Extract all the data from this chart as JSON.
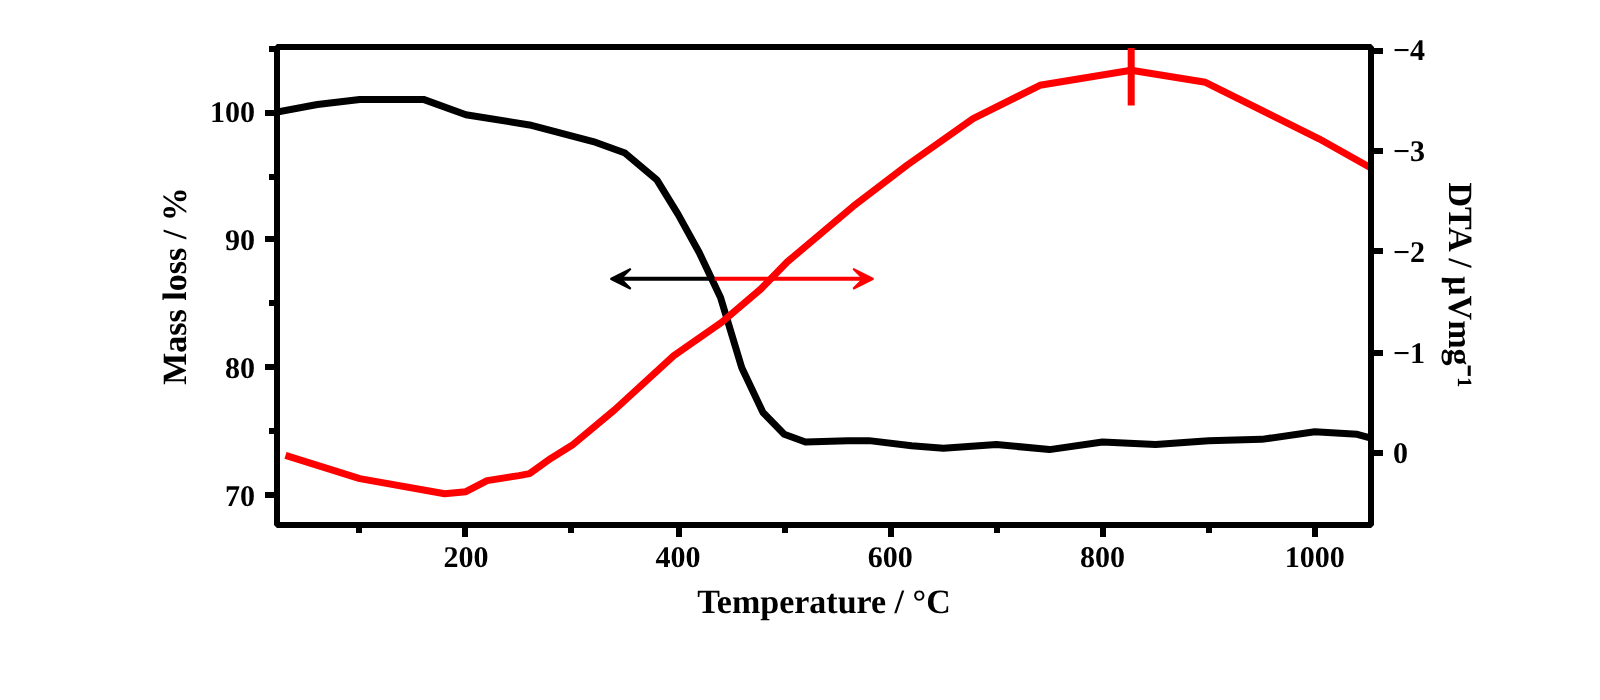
{
  "chart_data": {
    "type": "line",
    "xlabel": "Temperature / °C",
    "ylabel": "Mass loss / %",
    "y2label": "DTA / μVmg⁻¹",
    "xlim": [
      22,
      1053
    ],
    "xticks": [
      200,
      400,
      600,
      800,
      1000
    ],
    "ylim": [
      67.7,
      105.1
    ],
    "yticks": [
      70,
      80,
      90,
      100
    ],
    "y2lim": [
      0.71,
      -4.03
    ],
    "y2ticks": [
      0,
      -1,
      -2,
      -3,
      -4
    ],
    "grid": false,
    "line_style": "solid",
    "marker": "none",
    "series": [
      {
        "color": "#000000",
        "x": [
          22,
          60,
          100,
          160,
          200,
          260,
          320,
          350,
          380,
          400,
          420,
          440,
          460,
          480,
          500,
          520,
          560,
          580,
          620,
          650,
          700,
          750,
          800,
          850,
          900,
          950,
          1000,
          1040,
          1053
        ],
        "values": [
          100,
          100.6,
          101,
          101,
          99.8,
          99,
          97.7,
          96.8,
          94.7,
          92,
          89,
          85.5,
          80,
          76.5,
          74.8,
          74.2,
          74.3,
          74.3,
          73.9,
          73.7,
          74,
          73.6,
          74.2,
          74,
          74.3,
          74.4,
          75,
          74.8,
          74.5
        ]
      },
      {
        "color": "#ff0000",
        "axis": "y2",
        "x": [
          30,
          100,
          180,
          200,
          220,
          250,
          260,
          280,
          300,
          340,
          396,
          441,
          478,
          503,
          565,
          616,
          678,
          741,
          827,
          897,
          960,
          1004,
          1053
        ],
        "values": [
          0.02,
          0.25,
          0.4,
          0.38,
          0.27,
          0.22,
          0.2,
          0.05,
          -0.08,
          -0.43,
          -0.97,
          -1.3,
          -1.63,
          -1.9,
          -2.45,
          -2.86,
          -3.32,
          -3.65,
          -3.8,
          -3.68,
          -3.35,
          -3.12,
          -2.83
        ]
      },
      {
        "type": "line",
        "color": "#ff0000",
        "axis": "y2",
        "x": [
          827,
          827
        ],
        "values": [
          -4.02,
          -3.45
        ]
      }
    ]
  }
}
